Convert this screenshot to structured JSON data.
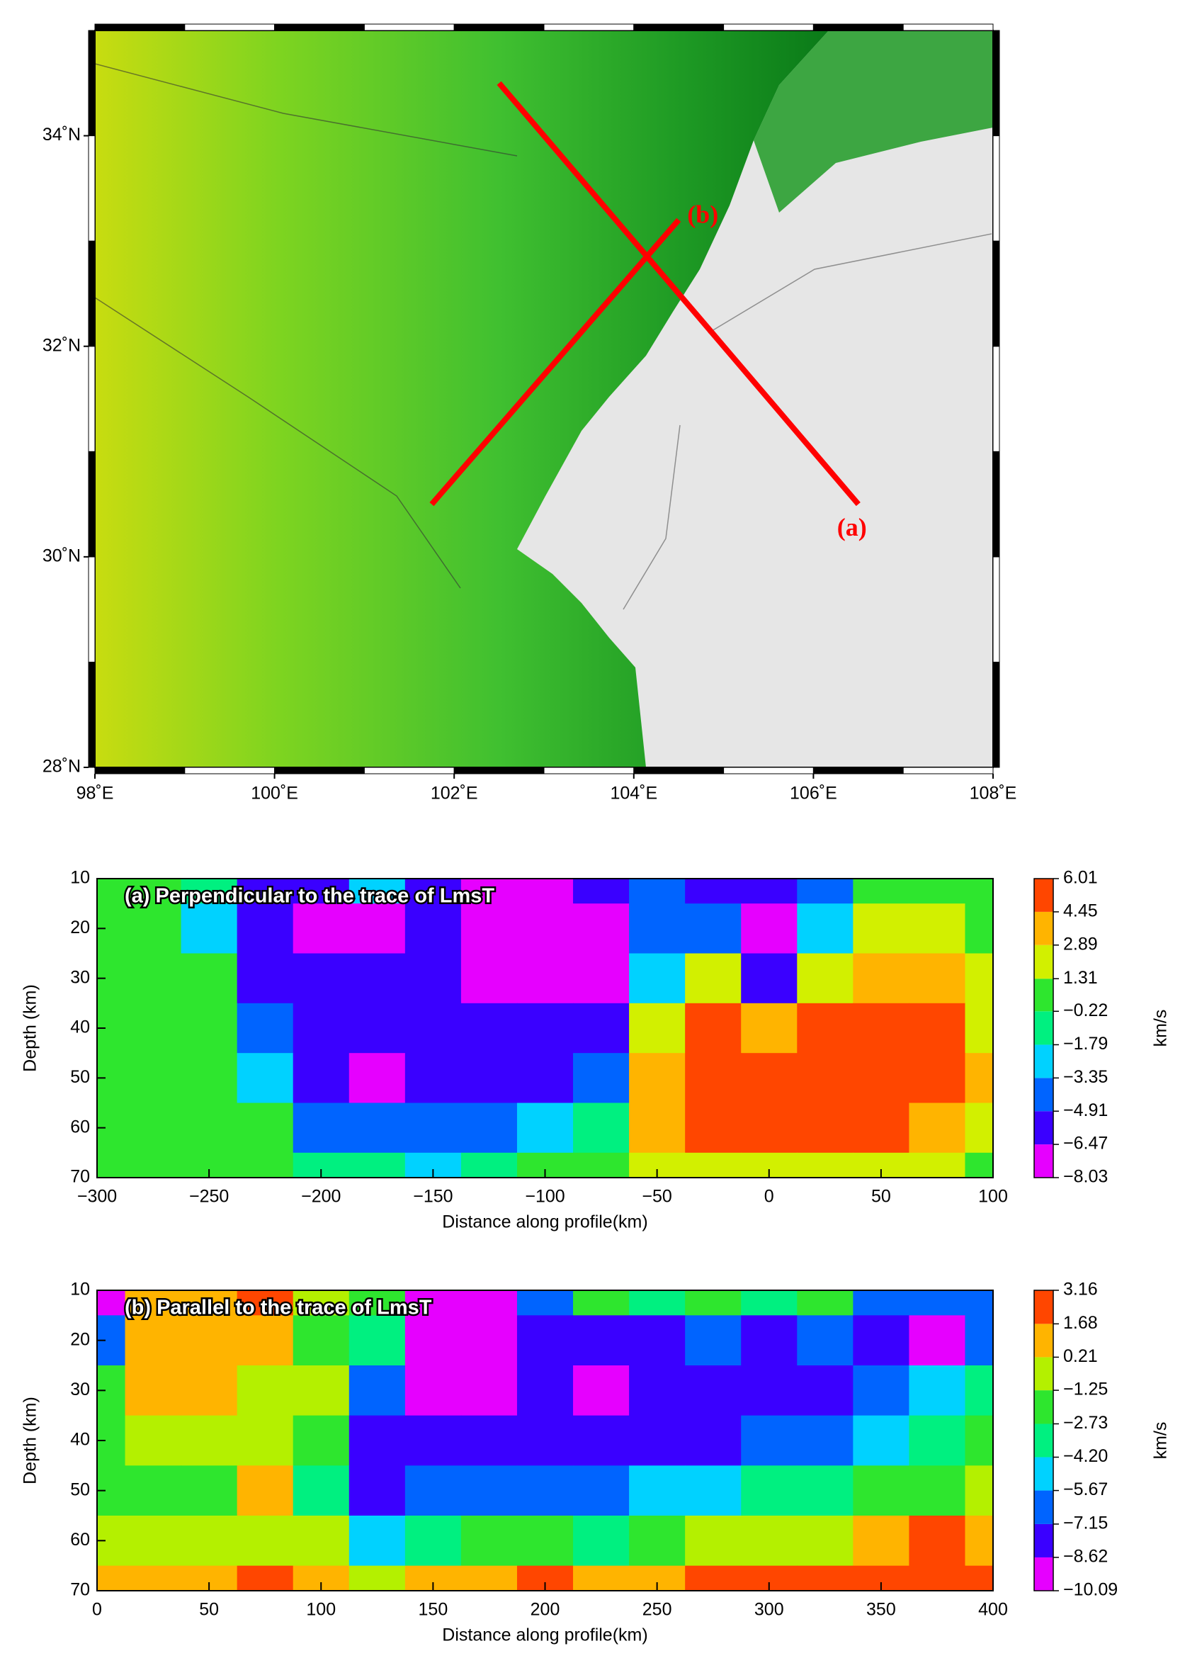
{
  "chart_data": [
    {
      "type": "map",
      "xlim": [
        98,
        108
      ],
      "ylim": [
        28,
        35
      ],
      "xticks": [
        {
          "value": 98,
          "label": "98˚E"
        },
        {
          "value": 100,
          "label": "100˚E"
        },
        {
          "value": 102,
          "label": "102˚E"
        },
        {
          "value": 104,
          "label": "104˚E"
        },
        {
          "value": 106,
          "label": "106˚E"
        },
        {
          "value": 108,
          "label": "108˚E"
        }
      ],
      "yticks": [
        {
          "value": 28,
          "label": "28˚N"
        },
        {
          "value": 30,
          "label": "30˚N"
        },
        {
          "value": 32,
          "label": "32˚N"
        },
        {
          "value": 34,
          "label": "34˚N"
        }
      ],
      "series": [
        {
          "name": "(a)",
          "color": "#ff0000",
          "x": [
            102.5,
            106.5
          ],
          "y": [
            34.5,
            30.5
          ]
        },
        {
          "name": "(b)",
          "color": "#ff0000",
          "x": [
            101.75,
            104.5
          ],
          "y": [
            30.5,
            33.2
          ]
        }
      ]
    },
    {
      "type": "contour",
      "title": "(a) Perpendicular to the trace of LmsT",
      "x_label": "Distance along profile(km)",
      "y_label": "Depth (km)",
      "colorbar_label": "km/s",
      "xlim": [
        -300,
        100
      ],
      "ylim": [
        10,
        70
      ],
      "xticks": [
        {
          "value": -300,
          "label": "−300"
        },
        {
          "value": -250,
          "label": "−250"
        },
        {
          "value": -200,
          "label": "−200"
        },
        {
          "value": -150,
          "label": "−150"
        },
        {
          "value": -100,
          "label": "−100"
        },
        {
          "value": -50,
          "label": "−50"
        },
        0,
        50,
        100
      ],
      "yticks": [
        10,
        20,
        30,
        40,
        50,
        60,
        70
      ],
      "levels": [
        {
          "value": -8.03,
          "label": "−8.03"
        },
        {
          "value": -6.47,
          "label": "−6.47"
        },
        {
          "value": -4.91,
          "label": "−4.91"
        },
        {
          "value": -3.35,
          "label": "−3.35"
        },
        {
          "value": -1.79,
          "label": "−1.79"
        },
        {
          "value": -0.22,
          "label": "−0.22"
        },
        1.31,
        2.89,
        4.45,
        6.01
      ],
      "colors": [
        "#e600ff",
        "#3a00ff",
        "#0064ff",
        "#00d2ff",
        "#00f080",
        "#2ee62e",
        "#d2f000",
        "#ffb400",
        "#ff4600"
      ],
      "x": [
        -300,
        -275,
        -250,
        -225,
        -200,
        -175,
        -150,
        -125,
        -100,
        -75,
        -50,
        -25,
        0,
        25,
        50,
        75,
        100
      ],
      "y": [
        10,
        20,
        30,
        40,
        50,
        60,
        70
      ],
      "z": [
        [
          0.5,
          0.5,
          -1.0,
          -5.7,
          -5.7,
          -2.6,
          -5.7,
          -7.2,
          -7.2,
          -5.7,
          -4.1,
          -5.7,
          -5.7,
          -4.1,
          0.5,
          0.5,
          0.5
        ],
        [
          0.5,
          0.5,
          -2.6,
          -5.7,
          -7.2,
          -7.2,
          -5.7,
          -7.2,
          -7.2,
          -7.2,
          -4.1,
          -4.1,
          -7.2,
          -2.6,
          2.1,
          2.1,
          0.5
        ],
        [
          0.5,
          0.5,
          0.5,
          -5.7,
          -5.7,
          -5.7,
          -5.7,
          -7.2,
          -7.2,
          -7.2,
          -2.6,
          2.1,
          -5.7,
          2.1,
          3.7,
          3.7,
          2.1
        ],
        [
          0.5,
          0.5,
          0.5,
          -4.1,
          -5.7,
          -5.7,
          -5.7,
          -5.7,
          -5.7,
          -5.7,
          2.1,
          5.2,
          3.7,
          5.2,
          5.2,
          5.2,
          2.1
        ],
        [
          0.5,
          0.5,
          0.5,
          -2.6,
          -5.7,
          -7.2,
          -5.7,
          -5.7,
          -5.7,
          -4.1,
          3.7,
          5.2,
          5.2,
          5.2,
          5.2,
          5.2,
          3.7
        ],
        [
          0.5,
          0.5,
          0.5,
          0.5,
          -4.1,
          -4.1,
          -4.1,
          -4.1,
          -2.6,
          -1.0,
          3.7,
          5.2,
          5.2,
          5.2,
          5.2,
          3.7,
          2.1
        ],
        [
          0.5,
          0.5,
          0.5,
          0.5,
          -1.0,
          -1.0,
          -2.6,
          -1.0,
          0.5,
          0.5,
          2.1,
          2.1,
          2.1,
          2.1,
          2.1,
          2.1,
          0.5
        ]
      ]
    },
    {
      "type": "contour",
      "title": "(b) Parallel to the trace of LmsT",
      "x_label": "Distance along profile(km)",
      "y_label": "Depth (km)",
      "colorbar_label": "km/s",
      "xlim": [
        0,
        400
      ],
      "ylim": [
        10,
        70
      ],
      "xticks": [
        0,
        50,
        100,
        150,
        200,
        250,
        300,
        350,
        400
      ],
      "yticks": [
        10,
        20,
        30,
        40,
        50,
        60,
        70
      ],
      "levels": [
        {
          "value": -10.09,
          "label": "−10.09"
        },
        {
          "value": -8.62,
          "label": "−8.62"
        },
        {
          "value": -7.15,
          "label": "−7.15"
        },
        {
          "value": -5.67,
          "label": "−5.67"
        },
        {
          "value": -4.2,
          "label": "−4.20"
        },
        {
          "value": -2.73,
          "label": "−2.73"
        },
        {
          "value": -1.25,
          "label": "−1.25"
        },
        0.21,
        1.68,
        3.16
      ],
      "colors": [
        "#e600ff",
        "#3a00ff",
        "#0064ff",
        "#00d2ff",
        "#00f080",
        "#2ee62e",
        "#b4f000",
        "#ffb400",
        "#ff4600"
      ],
      "x": [
        0,
        25,
        50,
        75,
        100,
        125,
        150,
        175,
        200,
        225,
        250,
        275,
        300,
        325,
        350,
        375,
        400
      ],
      "y": [
        10,
        20,
        30,
        40,
        50,
        60,
        70
      ],
      "z": [
        [
          -9.3,
          0.9,
          0.9,
          2.4,
          -0.5,
          -2.0,
          -9.3,
          -9.3,
          -6.4,
          -2.0,
          -3.5,
          -2.0,
          -3.5,
          -2.0,
          -6.4,
          -6.4,
          -6.4
        ],
        [
          -6.4,
          0.9,
          0.9,
          0.9,
          -2.0,
          -3.5,
          -9.3,
          -9.3,
          -7.9,
          -7.9,
          -7.9,
          -6.4,
          -7.9,
          -6.4,
          -7.9,
          -9.3,
          -6.4
        ],
        [
          -2.0,
          0.9,
          0.9,
          -0.5,
          -0.5,
          -6.4,
          -9.3,
          -9.3,
          -7.9,
          -9.3,
          -7.9,
          -7.9,
          -7.9,
          -7.9,
          -6.4,
          -4.9,
          -3.5
        ],
        [
          -2.0,
          -0.5,
          -0.5,
          -0.5,
          -2.0,
          -7.9,
          -7.9,
          -7.9,
          -7.9,
          -7.9,
          -7.9,
          -7.9,
          -6.4,
          -6.4,
          -4.9,
          -3.5,
          -2.0
        ],
        [
          -2.0,
          -2.0,
          -2.0,
          0.9,
          -3.5,
          -7.9,
          -6.4,
          -6.4,
          -6.4,
          -6.4,
          -4.9,
          -4.9,
          -3.5,
          -3.5,
          -2.0,
          -2.0,
          -0.5
        ],
        [
          -0.5,
          -0.5,
          -0.5,
          -0.5,
          -0.5,
          -4.9,
          -3.5,
          -2.0,
          -2.0,
          -3.5,
          -2.0,
          -0.5,
          -0.5,
          -0.5,
          0.9,
          2.4,
          0.9
        ],
        [
          0.9,
          0.9,
          0.9,
          2.4,
          0.9,
          -0.5,
          0.9,
          0.9,
          2.4,
          0.9,
          0.9,
          2.4,
          2.4,
          2.4,
          2.4,
          2.4,
          2.4
        ]
      ]
    }
  ]
}
